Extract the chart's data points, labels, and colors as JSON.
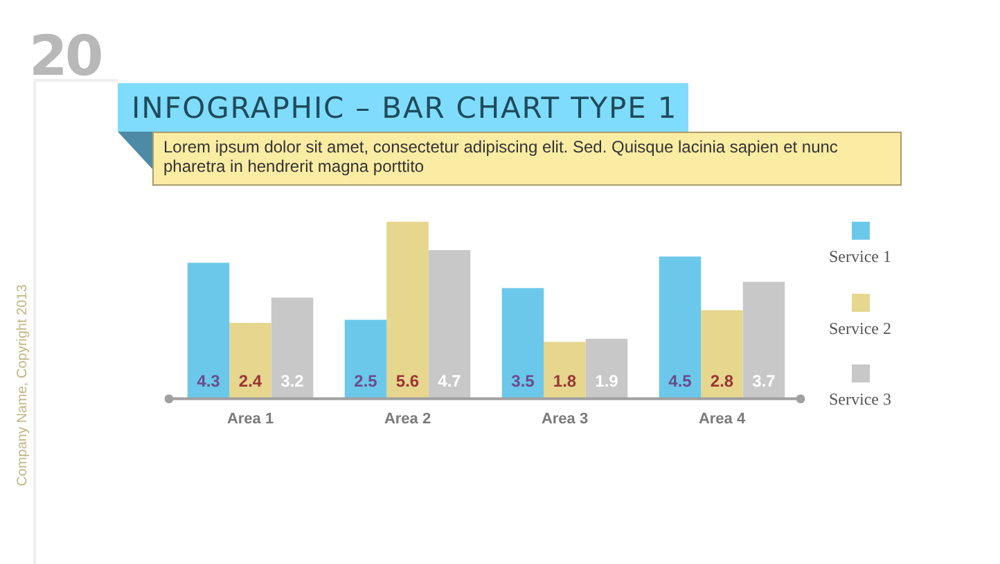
{
  "chart_data": {
    "type": "bar",
    "title": "INFOGRAPHIC – BAR CHART TYPE 1",
    "subtitle": "Lorem ipsum dolor sit amet, consectetur adipiscing elit. Sed. Quisque lacinia sapien et nunc pharetra in hendrerit magna porttito",
    "annotations": [
      "20",
      "Company Name, Copyright 2013"
    ],
    "categories": [
      "Area 1",
      "Area 2",
      "Area 3",
      "Area 4"
    ],
    "series": [
      {
        "name": "Service 1",
        "color": "#6cc8ea",
        "values": [
          4.3,
          2.5,
          3.5,
          4.5
        ]
      },
      {
        "name": "Service 2",
        "color": "#e6d68e",
        "values": [
          2.4,
          5.6,
          1.8,
          2.8
        ]
      },
      {
        "name": "Service 3",
        "color": "#c8c8c8",
        "values": [
          3.2,
          4.7,
          1.9,
          3.7
        ]
      }
    ],
    "data_labels": true,
    "legend": "right",
    "grid": false
  }
}
